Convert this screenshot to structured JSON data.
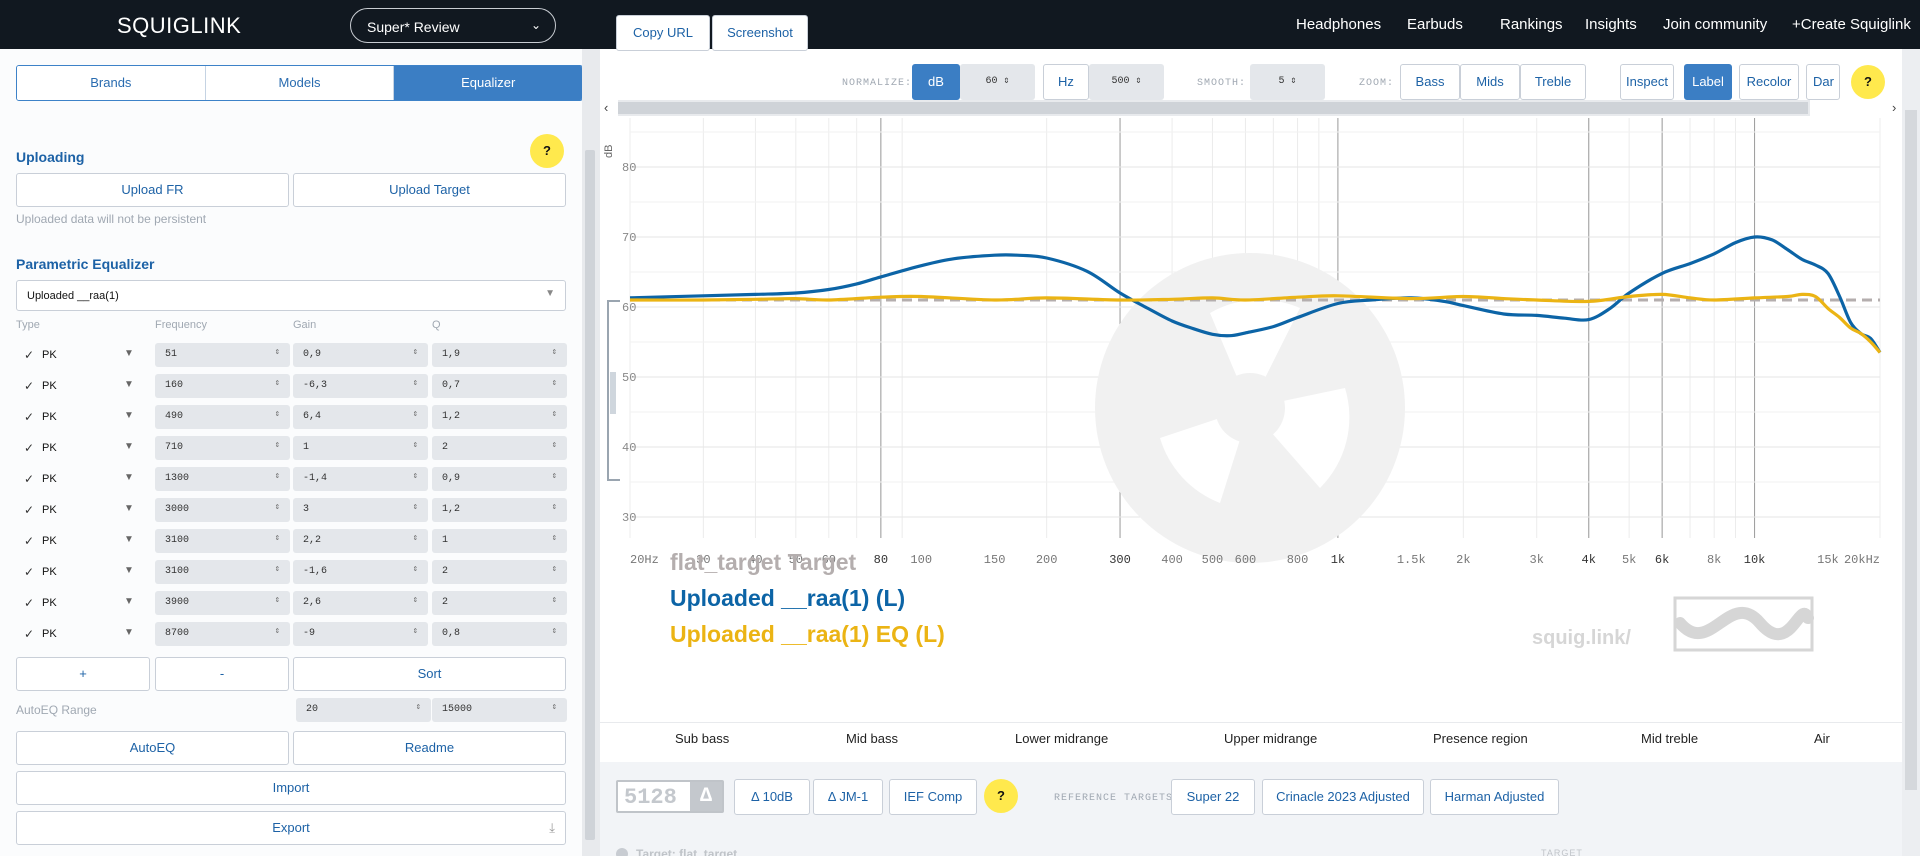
{
  "topbar": {
    "logo": "SQUIGLINK",
    "site_select": "Super* Review",
    "nav": [
      "Headphones",
      "Earbuds",
      "Rankings",
      "Insights",
      "Join community",
      "+Create Squiglink"
    ]
  },
  "left": {
    "tabs": [
      "Brands",
      "Models",
      "Equalizer"
    ],
    "active_tab": "Equalizer",
    "help_label": "?",
    "uploading": {
      "title": "Uploading",
      "upload_fr": "Upload FR",
      "upload_target": "Upload Target",
      "note": "Uploaded data will not be persistent"
    },
    "peq": {
      "title": "Parametric Equalizer",
      "selected": "Uploaded __raa(1)",
      "columns": [
        "Type",
        "Frequency",
        "Gain",
        "Q"
      ],
      "filters": [
        {
          "type": "PK",
          "freq": "51",
          "gain": "0,9",
          "q": "1,9"
        },
        {
          "type": "PK",
          "freq": "160",
          "gain": "-6,3",
          "q": "0,7"
        },
        {
          "type": "PK",
          "freq": "490",
          "gain": "6,4",
          "q": "1,2"
        },
        {
          "type": "PK",
          "freq": "710",
          "gain": "1",
          "q": "2"
        },
        {
          "type": "PK",
          "freq": "1300",
          "gain": "-1,4",
          "q": "0,9"
        },
        {
          "type": "PK",
          "freq": "3000",
          "gain": "3",
          "q": "1,2"
        },
        {
          "type": "PK",
          "freq": "3100",
          "gain": "2,2",
          "q": "1"
        },
        {
          "type": "PK",
          "freq": "3100",
          "gain": "-1,6",
          "q": "2"
        },
        {
          "type": "PK",
          "freq": "3900",
          "gain": "2,6",
          "q": "2"
        },
        {
          "type": "PK",
          "freq": "8700",
          "gain": "-9",
          "q": "0,8"
        }
      ],
      "add": "+",
      "remove": "-",
      "sort": "Sort",
      "autoeq_range_label": "AutoEQ Range",
      "range_min": "20",
      "range_max": "15000",
      "autoeq": "AutoEQ",
      "readme": "Readme",
      "import": "Import",
      "export": "Export"
    }
  },
  "toolbar": {
    "copy_url": "Copy URL",
    "screenshot": "Screenshot",
    "normalize_label": "NORMALIZE:",
    "db": "dB",
    "db_value": "60",
    "hz": "Hz",
    "hz_value": "500",
    "smooth_label": "SMOOTH:",
    "smooth_value": "5",
    "zoom_label": "ZOOM:",
    "zoom": [
      "Bass",
      "Mids",
      "Treble"
    ],
    "inspect": "Inspect",
    "label": "Label",
    "recolor": "Recolor",
    "dark": "Dar",
    "help": "?"
  },
  "chart_data": {
    "type": "line",
    "ylabel": "dB",
    "ylim": [
      27,
      87
    ],
    "yticks": [
      30,
      40,
      50,
      60,
      70,
      80
    ],
    "xscale": "log",
    "xlim": [
      20,
      20000
    ],
    "xticks": [
      "20Hz",
      "30",
      "40",
      "50",
      "60",
      "80",
      "100",
      "150",
      "200",
      "300",
      "400",
      "500",
      "600",
      "800",
      "1k",
      "1.5k",
      "2k",
      "3k",
      "4k",
      "5k",
      "6k",
      "8k",
      "10k",
      "15k",
      "20kHz"
    ],
    "xtick_values": [
      20,
      30,
      40,
      50,
      60,
      80,
      100,
      150,
      200,
      300,
      400,
      500,
      600,
      800,
      1000,
      1500,
      2000,
      3000,
      4000,
      5000,
      6000,
      8000,
      10000,
      15000,
      20000
    ],
    "watermark": "squig.link/",
    "series": [
      {
        "name": "flat_target Target",
        "color": "#b4aeae",
        "dashed": true,
        "x": [
          20,
          20000
        ],
        "y": [
          61,
          61
        ]
      },
      {
        "name": "Uploaded __raa(1) (L)",
        "color": "#0c64a6",
        "x": [
          20,
          30,
          40,
          50,
          60,
          70,
          80,
          100,
          120,
          150,
          170,
          200,
          250,
          300,
          350,
          400,
          450,
          500,
          550,
          600,
          700,
          800,
          1000,
          1200,
          1500,
          1800,
          2000,
          2500,
          3000,
          3500,
          4000,
          4500,
          5000,
          6000,
          7000,
          8000,
          9000,
          10000,
          11000,
          12000,
          13000,
          14000,
          15000,
          16000,
          17000,
          18000,
          19000,
          20000
        ],
        "y": [
          61.3,
          61.6,
          61.8,
          62.0,
          62.5,
          63.3,
          64.3,
          65.9,
          66.9,
          67.4,
          67.4,
          67.0,
          65.1,
          62.0,
          59.8,
          58.0,
          56.9,
          56.1,
          55.9,
          56.3,
          57.2,
          58.5,
          60.5,
          61.0,
          61.3,
          60.8,
          60.2,
          59.0,
          58.8,
          58.4,
          58.2,
          59.8,
          62.0,
          64.8,
          66.2,
          67.6,
          69.2,
          70.0,
          69.6,
          68.2,
          66.8,
          66.0,
          64.8,
          61.5,
          57.8,
          56.2,
          55.5,
          53.5
        ]
      },
      {
        "name": "Uploaded __raa(1) EQ (L)",
        "color": "#ebb414",
        "x": [
          20,
          30,
          40,
          50,
          60,
          80,
          100,
          150,
          200,
          300,
          400,
          500,
          600,
          800,
          1000,
          1500,
          2000,
          2500,
          3000,
          4000,
          5000,
          6000,
          7000,
          8000,
          10000,
          12000,
          13000,
          14000,
          15000,
          16000,
          17000,
          18000,
          19000,
          20000
        ],
        "y": [
          61.0,
          61.0,
          61.1,
          61.2,
          61.0,
          61.4,
          61.5,
          61.0,
          61.3,
          61.0,
          61.1,
          61.3,
          61.0,
          61.4,
          61.6,
          61.2,
          61.5,
          61.2,
          61.0,
          60.8,
          61.5,
          61.8,
          61.3,
          61.0,
          61.3,
          61.5,
          61.8,
          61.5,
          59.8,
          58.5,
          57.0,
          56.2,
          55.0,
          53.5
        ]
      }
    ]
  },
  "regions": [
    "Sub bass",
    "Mid bass",
    "Lower midrange",
    "Upper midrange",
    "Presence region",
    "Mid treble",
    "Air"
  ],
  "bottom": {
    "badge": "5128",
    "badge_delta": "Δ",
    "comp_buttons": [
      "Δ 10dB",
      "Δ JM-1",
      "IEF Comp"
    ],
    "help": "?",
    "ref_label": "REFERENCE TARGETS:",
    "ref_targets": [
      "Super 22",
      "Crinacle 2023 Adjusted",
      "Harman Adjusted"
    ],
    "target_line": "Target: flat_target",
    "target_label": "TARGET"
  }
}
